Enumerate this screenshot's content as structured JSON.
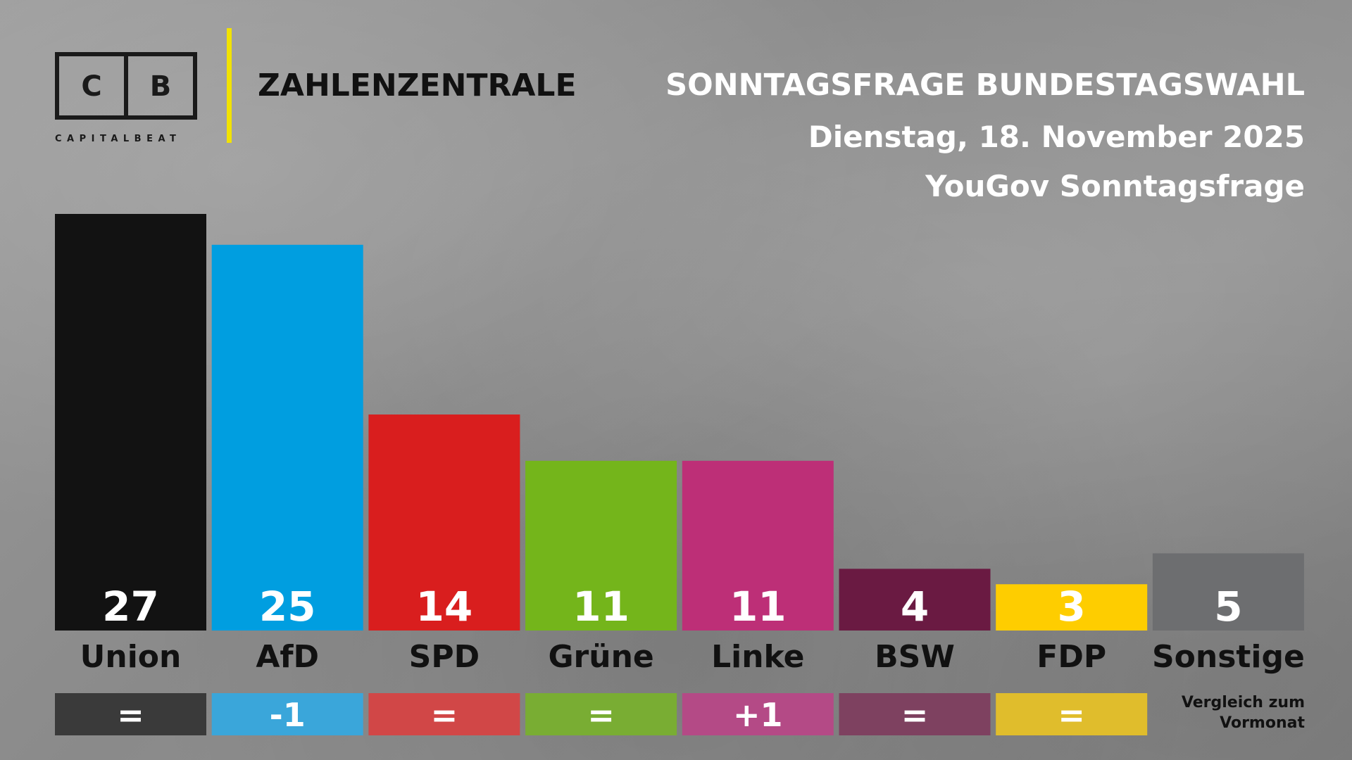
{
  "header": {
    "logo_letters": [
      "C",
      "B"
    ],
    "logo_wordmark": "CAPITALBEAT",
    "brand": "ZAHLENZENTRALE",
    "title": "SONNTAGSFRAGE BUNDESTAGSWAHL",
    "date": "Dienstag, 18. November 2025",
    "source": "YouGov Sonntagsfrage"
  },
  "colors": {
    "divider": "#f2e200",
    "background": "#8f8f8f"
  },
  "chart_data": {
    "type": "bar",
    "title": "SONNTAGSFRAGE BUNDESTAGSWAHL",
    "categories": [
      "Union",
      "AfD",
      "SPD",
      "Grüne",
      "Linke",
      "BSW",
      "FDP",
      "Sonstige"
    ],
    "values": [
      27,
      25,
      14,
      11,
      11,
      4,
      3,
      5
    ],
    "value_labels": [
      "27",
      "25",
      "14",
      "11",
      "11",
      "4",
      "3",
      "5"
    ],
    "colors": [
      "#121212",
      "#009ee0",
      "#d91e1e",
      "#74b51b",
      "#bd2f77",
      "#6a1a42",
      "#fecd00",
      "#6d6e70"
    ],
    "change_labels": [
      "=",
      "-1",
      "=",
      "=",
      "+1",
      "=",
      "=",
      ""
    ],
    "change_colors": [
      "#3a3a3a",
      "#3aa6da",
      "#d14747",
      "#79ad33",
      "#b44a86",
      "#7e4160",
      "#e0bd2c",
      ""
    ],
    "change_note": "Vergleich zum Vormonat",
    "xlabel": "",
    "ylabel": "",
    "ylim": [
      0,
      27
    ],
    "grid": false,
    "legend": "none"
  }
}
